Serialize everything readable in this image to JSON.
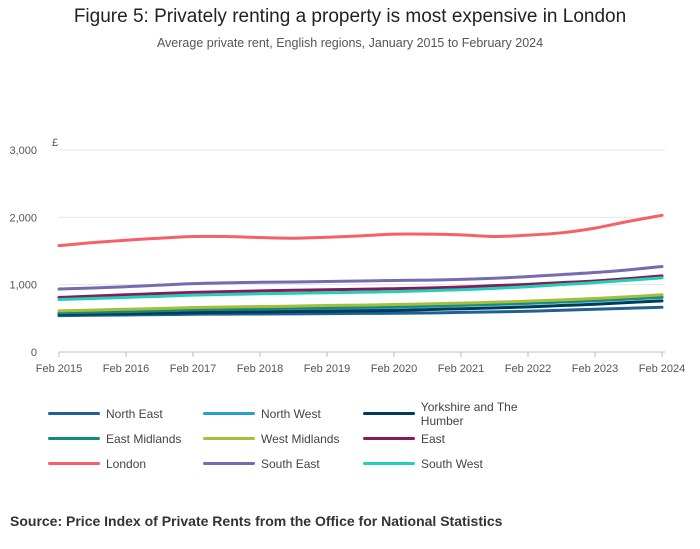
{
  "header": {
    "title": "Figure 5: Privately renting a property is most expensive in London",
    "subtitle": "Average private rent, English regions, January 2015 to February 2024"
  },
  "footer": {
    "source": "Source: Price Index of Private Rents from the Office for National Statistics"
  },
  "chart_data": {
    "type": "line",
    "title": "Figure 5: Privately renting a property is most expensive in London",
    "subtitle": "Average private rent, English regions, January 2015 to February 2024",
    "ylabel": "£",
    "xlabel": "",
    "ylim": [
      0,
      3000
    ],
    "yticks": [
      0,
      1000,
      2000,
      3000
    ],
    "ytick_labels": [
      "0",
      "1,000",
      "2,000",
      "3,000"
    ],
    "xticks": [
      "Feb 2015",
      "Feb 2016",
      "Feb 2017",
      "Feb 2018",
      "Feb 2019",
      "Feb 2020",
      "Feb 2021",
      "Feb 2022",
      "Feb 2023",
      "Feb 2024"
    ],
    "x": [
      2015.0,
      2015.5,
      2016.0,
      2016.5,
      2017.0,
      2017.5,
      2018.0,
      2018.5,
      2019.0,
      2019.5,
      2020.0,
      2020.5,
      2021.0,
      2021.5,
      2022.0,
      2022.5,
      2023.0,
      2023.5,
      2024.0
    ],
    "grid": true,
    "legend_position": "bottom",
    "series": [
      {
        "name": "North East",
        "color": "#206095",
        "values": [
          540,
          545,
          550,
          555,
          560,
          563,
          565,
          567,
          570,
          573,
          575,
          580,
          588,
          596,
          605,
          620,
          635,
          650,
          665
        ]
      },
      {
        "name": "North West",
        "color": "#27a0cc",
        "values": [
          570,
          580,
          590,
          600,
          610,
          620,
          628,
          635,
          643,
          650,
          660,
          675,
          690,
          705,
          720,
          740,
          760,
          785,
          810
        ]
      },
      {
        "name": "Yorkshire and The Humber",
        "color": "#003c57",
        "values": [
          560,
          565,
          570,
          578,
          585,
          590,
          595,
          600,
          605,
          610,
          617,
          630,
          642,
          655,
          670,
          690,
          710,
          735,
          760
        ]
      },
      {
        "name": "East Midlands",
        "color": "#118c7b",
        "values": [
          580,
          590,
          600,
          612,
          625,
          635,
          645,
          652,
          660,
          667,
          675,
          688,
          700,
          715,
          730,
          750,
          770,
          795,
          820
        ]
      },
      {
        "name": "West Midlands",
        "color": "#a8bd3a",
        "values": [
          610,
          622,
          635,
          647,
          660,
          668,
          675,
          682,
          690,
          697,
          705,
          715,
          725,
          740,
          755,
          775,
          795,
          820,
          850
        ]
      },
      {
        "name": "East",
        "color": "#871a5b",
        "values": [
          810,
          830,
          850,
          868,
          885,
          897,
          908,
          917,
          925,
          932,
          940,
          950,
          965,
          985,
          1005,
          1030,
          1055,
          1090,
          1130
        ]
      },
      {
        "name": "London",
        "color": "#f66068",
        "values": [
          1580,
          1625,
          1660,
          1690,
          1715,
          1715,
          1700,
          1690,
          1705,
          1725,
          1750,
          1750,
          1740,
          1715,
          1735,
          1770,
          1840,
          1940,
          2030
        ]
      },
      {
        "name": "South East",
        "color": "#746cb1",
        "values": [
          935,
          950,
          970,
          993,
          1015,
          1027,
          1035,
          1040,
          1047,
          1055,
          1062,
          1068,
          1078,
          1095,
          1120,
          1150,
          1180,
          1220,
          1270
        ]
      },
      {
        "name": "South West",
        "color": "#22d0b6",
        "values": [
          780,
          795,
          810,
          827,
          845,
          855,
          865,
          872,
          880,
          888,
          897,
          910,
          925,
          945,
          970,
          1000,
          1030,
          1065,
          1100
        ]
      }
    ]
  }
}
